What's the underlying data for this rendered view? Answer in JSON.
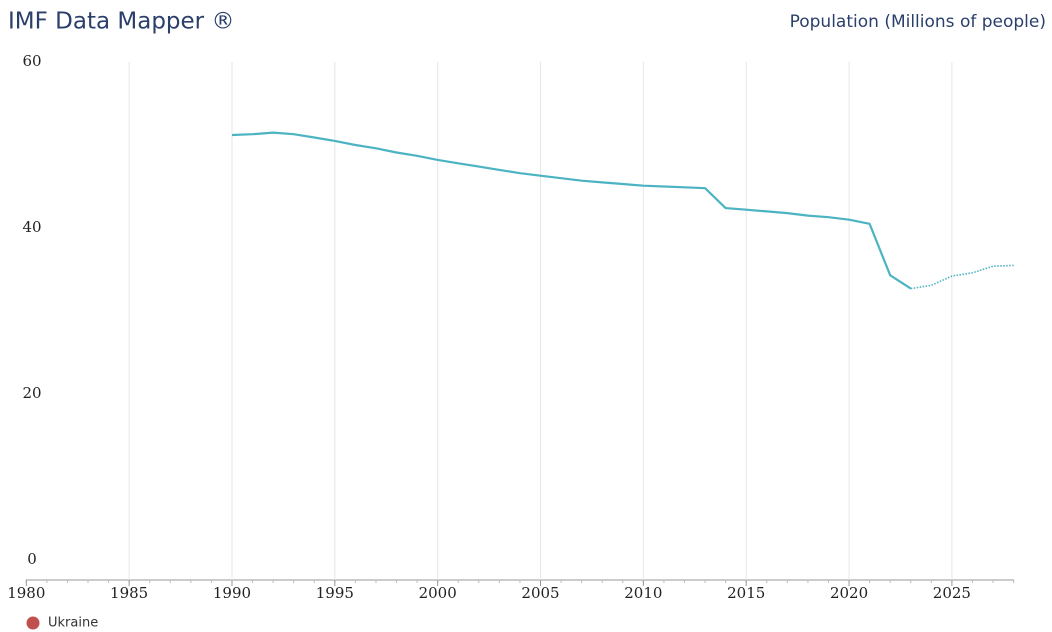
{
  "chart_data": {
    "type": "line",
    "title": "IMF Data Mapper ®",
    "subtitle": "Population (Millions of people)",
    "x": [
      1980,
      1981,
      1982,
      1983,
      1984,
      1985,
      1986,
      1987,
      1988,
      1989,
      1990,
      1991,
      1992,
      1993,
      1994,
      1995,
      1996,
      1997,
      1998,
      1999,
      2000,
      2001,
      2002,
      2003,
      2004,
      2005,
      2006,
      2007,
      2008,
      2009,
      2010,
      2011,
      2012,
      2013,
      2014,
      2015,
      2016,
      2017,
      2018,
      2019,
      2020,
      2021,
      2022,
      2023,
      2024,
      2025,
      2026,
      2027,
      2028
    ],
    "series": [
      {
        "name": "Ukraine",
        "color": "#4bb3c2",
        "legend_color": "#c0504d",
        "values": [
          null,
          null,
          null,
          null,
          null,
          null,
          null,
          null,
          null,
          null,
          51.2,
          51.3,
          51.5,
          51.3,
          50.9,
          50.5,
          50.0,
          49.6,
          49.1,
          48.7,
          48.2,
          47.8,
          47.4,
          47.0,
          46.6,
          46.3,
          46.0,
          45.7,
          45.5,
          45.3,
          45.1,
          45.0,
          44.9,
          44.8,
          42.4,
          42.2,
          42.0,
          41.8,
          41.5,
          41.3,
          41.0,
          40.5,
          34.3,
          32.7,
          33.1,
          34.2,
          34.6,
          35.4,
          35.5
        ]
      }
    ],
    "projection_start": 2023,
    "xlim": [
      1980,
      2028
    ],
    "xticks": [
      1980,
      1985,
      1990,
      1995,
      2000,
      2005,
      2010,
      2015,
      2020,
      2025
    ],
    "ylim": [
      0,
      60
    ],
    "yticks": [
      0,
      20,
      40,
      60
    ],
    "grid": "x"
  }
}
